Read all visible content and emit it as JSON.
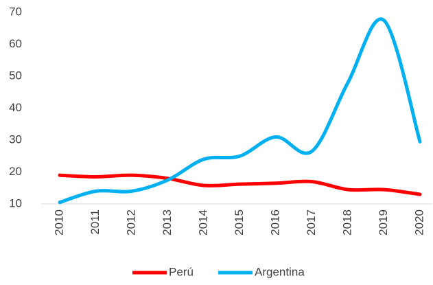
{
  "chart_data": {
    "type": "line",
    "categories": [
      "2010",
      "2011",
      "2012",
      "2013",
      "2014",
      "2015",
      "2016",
      "2017",
      "2018",
      "2019",
      "2020"
    ],
    "series": [
      {
        "name": "Perú",
        "color": "#ff0000",
        "values": [
          19,
          18.5,
          19,
          18,
          15.8,
          16.2,
          16.5,
          17,
          14.5,
          14.5,
          13
        ]
      },
      {
        "name": "Argentina",
        "color": "#00b0f0",
        "values": [
          10.5,
          14,
          14,
          17.5,
          24,
          25,
          31,
          26.5,
          48,
          67.5,
          29.5
        ]
      }
    ],
    "ylim": [
      10,
      70
    ],
    "yticks": [
      10,
      20,
      30,
      40,
      50,
      60,
      70
    ],
    "grid": false,
    "legend": "bottom",
    "smooth": true
  }
}
